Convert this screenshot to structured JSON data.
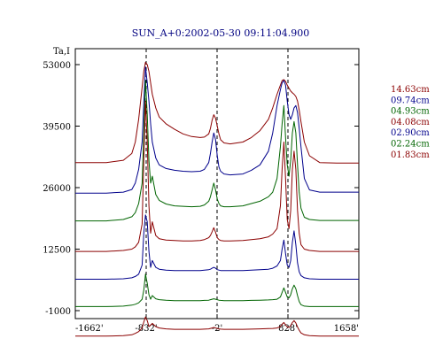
{
  "chart_data": {
    "type": "line",
    "title": "SUN_A+0:2002-05-30 09:11:04.900",
    "ylabel": "Ta,I",
    "xlabel": "",
    "x_ticks": [
      "-1662'",
      "-832'",
      "-2'",
      "828'",
      "1658'"
    ],
    "y_ticks": [
      "53000",
      "39500",
      "26000",
      "12500",
      "-1000"
    ],
    "xlim": [
      -1662,
      1658
    ],
    "ylim": [
      -1000,
      53000
    ],
    "vertical_markers": [
      -832,
      -2,
      828
    ],
    "grid": false,
    "legend_position": "right",
    "x": [
      -1662,
      -1300,
      -1100,
      -1000,
      -960,
      -920,
      -880,
      -860,
      -840,
      -820,
      -800,
      -780,
      -760,
      -720,
      -680,
      -600,
      -500,
      -400,
      -300,
      -200,
      -150,
      -100,
      -80,
      -60,
      -40,
      -20,
      0,
      20,
      40,
      80,
      150,
      300,
      400,
      500,
      600,
      650,
      700,
      740,
      760,
      780,
      800,
      820,
      840,
      860,
      880,
      900,
      920,
      940,
      960,
      980,
      1020,
      1080,
      1200,
      1400,
      1658
    ],
    "series": [
      {
        "name": "14.63cm",
        "color": "#8b0000",
        "values": [
          31500,
          31500,
          32000,
          33500,
          36000,
          41000,
          48000,
          51500,
          53500,
          53000,
          51500,
          49000,
          46500,
          43500,
          41500,
          40000,
          38800,
          37800,
          37200,
          37000,
          37100,
          37800,
          39000,
          40800,
          42000,
          41200,
          39500,
          37800,
          36500,
          35800,
          35600,
          36000,
          37000,
          38500,
          41000,
          43500,
          46500,
          48500,
          49500,
          49700,
          49300,
          48500,
          47800,
          47200,
          46800,
          46500,
          46000,
          45000,
          43000,
          40500,
          36000,
          33000,
          31500,
          31400,
          31400
        ]
      },
      {
        "name": "09.74cm",
        "color": "#00008b",
        "values": [
          24800,
          24800,
          25000,
          25600,
          27000,
          30000,
          36000,
          44500,
          52500,
          49000,
          45000,
          40000,
          36000,
          32500,
          31000,
          30200,
          29800,
          29600,
          29500,
          29600,
          30000,
          31500,
          33500,
          36000,
          38000,
          36500,
          33000,
          30500,
          29600,
          29000,
          28800,
          29000,
          29800,
          31000,
          34000,
          38000,
          44000,
          47500,
          49000,
          49500,
          48500,
          45000,
          42000,
          41000,
          42000,
          43500,
          44000,
          42500,
          39000,
          35000,
          28000,
          25500,
          25000,
          25000,
          25000
        ]
      },
      {
        "name": "04.93cm",
        "color": "#006400",
        "values": [
          18700,
          18700,
          19000,
          19600,
          20500,
          22500,
          27000,
          38000,
          49500,
          42000,
          32000,
          27000,
          28500,
          24500,
          23200,
          22400,
          22000,
          21900,
          21800,
          21900,
          22200,
          23000,
          24000,
          25500,
          27000,
          25500,
          23500,
          22500,
          22000,
          21800,
          21800,
          22000,
          22500,
          23000,
          24000,
          25000,
          28000,
          35000,
          40000,
          44000,
          37000,
          31000,
          28500,
          32000,
          38000,
          40500,
          38000,
          31000,
          25000,
          21500,
          19500,
          19000,
          18800,
          18800,
          18800
        ]
      },
      {
        "name": "04.08cm",
        "color": "#8b0000",
        "values": [
          12000,
          12000,
          12200,
          12500,
          13000,
          14000,
          18000,
          32000,
          45000,
          36000,
          22000,
          16000,
          18500,
          15500,
          14800,
          14500,
          14400,
          14300,
          14300,
          14400,
          14600,
          15000,
          15500,
          16300,
          17200,
          16200,
          15000,
          14600,
          14400,
          14300,
          14300,
          14400,
          14600,
          14800,
          15200,
          15800,
          17000,
          22000,
          30000,
          36000,
          28000,
          19000,
          17000,
          21000,
          30000,
          34000,
          30000,
          21000,
          16000,
          13500,
          12500,
          12200,
          12000,
          12000,
          12000
        ]
      },
      {
        "name": "02.90cm",
        "color": "#00008b",
        "values": [
          5900,
          5900,
          6000,
          6200,
          6500,
          7000,
          9000,
          16000,
          20000,
          18500,
          12000,
          8500,
          10000,
          8500,
          8100,
          7900,
          7800,
          7800,
          7800,
          7800,
          7900,
          8000,
          8100,
          8300,
          8500,
          8300,
          8000,
          7900,
          7800,
          7800,
          7800,
          7800,
          7900,
          8000,
          8100,
          8300,
          8800,
          10000,
          12500,
          14500,
          11500,
          9000,
          8500,
          10000,
          14000,
          16500,
          13500,
          9500,
          7500,
          6700,
          6200,
          6000,
          5900,
          5900,
          5900
        ]
      },
      {
        "name": "02.24cm",
        "color": "#006400",
        "values": [
          -100,
          -100,
          0,
          200,
          400,
          700,
          1500,
          3500,
          7000,
          5000,
          2500,
          1500,
          2300,
          1600,
          1400,
          1300,
          1200,
          1200,
          1200,
          1200,
          1250,
          1300,
          1400,
          1500,
          1600,
          1500,
          1400,
          1300,
          1250,
          1200,
          1200,
          1200,
          1250,
          1300,
          1350,
          1400,
          1500,
          2000,
          3000,
          4000,
          3000,
          2000,
          1800,
          2500,
          3800,
          4600,
          3800,
          2300,
          1000,
          300,
          0,
          -100,
          -100,
          -100,
          -100
        ]
      },
      {
        "name": "01.83cm",
        "color": "#8b0000",
        "values": [
          -6600,
          -6600,
          -6500,
          -6300,
          -6000,
          -5600,
          -4800,
          -3500,
          -2400,
          -3200,
          -4500,
          -4200,
          -3800,
          -4500,
          -4800,
          -5000,
          -5100,
          -5100,
          -5100,
          -5100,
          -5050,
          -5000,
          -4900,
          -4800,
          -4700,
          -4800,
          -4900,
          -5000,
          -5050,
          -5100,
          -5100,
          -5100,
          -5050,
          -5000,
          -4950,
          -4900,
          -4800,
          -4500,
          -4000,
          -3600,
          -4100,
          -4600,
          -4700,
          -4300,
          -3600,
          -3200,
          -3700,
          -4600,
          -5300,
          -5900,
          -6300,
          -6500,
          -6600,
          -6600,
          -6600
        ]
      }
    ]
  }
}
